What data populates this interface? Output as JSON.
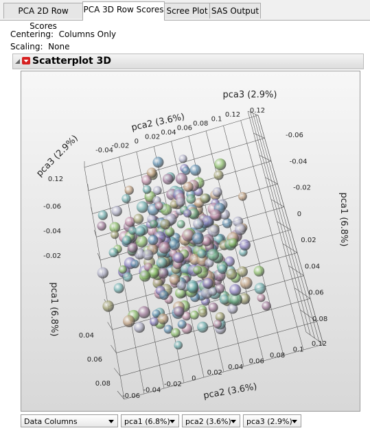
{
  "tabs": [
    "PCA 2D Row Scores",
    "PCA 3D Row Scores",
    "Scree Plot",
    "SAS Output"
  ],
  "active_tab": 1,
  "centering": {
    "label": "Centering:",
    "value": "Columns Only"
  },
  "scaling": {
    "label": "Scaling:",
    "value": "None"
  },
  "outline": {
    "title": "Scatterplot 3D"
  },
  "plot": {
    "axis_labels": {
      "top_pca3": "pca3 (2.9%)",
      "top_pca2": "pca2 (3.6%)",
      "left_pca3": "pca3 (2.9%)",
      "left_pca1": "pca1 (6.8%)",
      "right_pca1": "pca1 (6.8%)",
      "bottom_pca2": "pca2 (3.6%)"
    },
    "ticks": {
      "top_pca2": [
        "-0.04",
        "-0.02",
        "0",
        "0.02",
        "0.04",
        "0.06",
        "0.08",
        "0.1",
        "0.12"
      ],
      "top_pca3": [
        "0.12"
      ],
      "left_pca3": [
        "0.12"
      ],
      "left_pca1_upper": [
        "-0.06",
        "-0.04",
        "-0.02"
      ],
      "left_pca1_lower": [
        "0.04",
        "0.06",
        "0.08"
      ],
      "right_pca1": [
        "-0.06",
        "-0.04",
        "-0.02",
        "0",
        "0.02",
        "0.04",
        "0.06",
        "0.08"
      ],
      "bottom_pca2": [
        "-0.06",
        "-0.04",
        "-0.02",
        "0",
        "0.02",
        "0.04",
        "0.06",
        "0.08",
        "0.1",
        "0.12"
      ]
    }
  },
  "controls": [
    "Data Columns",
    "pca1 (6.8%)",
    "pca2 (3.6%)",
    "pca3 (2.9%)"
  ]
}
